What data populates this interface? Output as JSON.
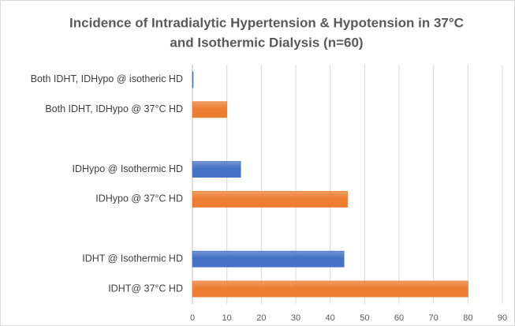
{
  "chart_data": {
    "type": "hbar",
    "title": [
      "Incidence of Intradialytic Hypertension & Hypotension in 37°C",
      "and Isothermic Dialysis (n=60)"
    ],
    "categories": [
      "Both IDHT, IDHypo @ isotheric HD",
      "Both IDHT, IDHypo @ 37°C HD",
      null,
      "IDHypo @ Isothermic HD",
      "IDHypo @ 37°C HD",
      null,
      "IDHT @ Isothermic HD",
      "IDHT@ 37°C HD"
    ],
    "values": [
      0.2,
      10,
      null,
      14,
      45,
      null,
      44,
      80
    ],
    "colors": [
      "#4472c4",
      "#ed7d31",
      null,
      "#4472c4",
      "#ed7d31",
      null,
      "#4472c4",
      "#ed7d31"
    ],
    "xlim": [
      0,
      90
    ],
    "xticks": [
      0,
      10,
      20,
      30,
      40,
      50,
      60,
      70,
      80,
      90
    ],
    "grid": true
  }
}
